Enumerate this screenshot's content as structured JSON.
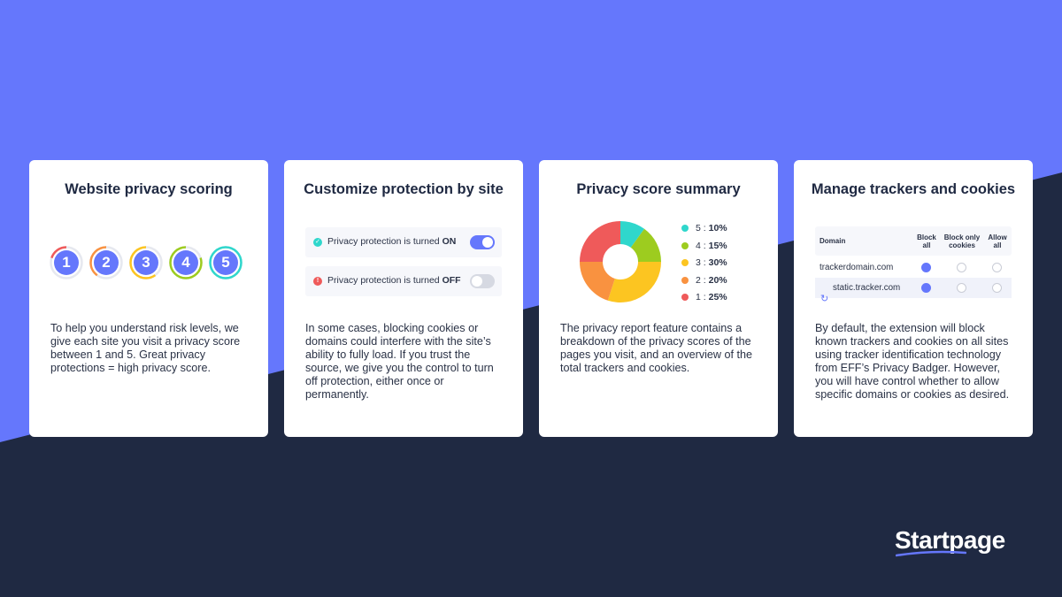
{
  "colors": {
    "background_top": "#6577fc",
    "background_bottom": "#1f2942",
    "accent": "#6577fc",
    "score_1": "#ef5a5a",
    "score_2": "#f99240",
    "score_3": "#fcc521",
    "score_4": "#9dcc1f",
    "score_5": "#2fd7cc"
  },
  "cards": [
    {
      "title": "Website privacy scoring",
      "scores": [
        "1",
        "2",
        "3",
        "4",
        "5"
      ],
      "text": "To help you understand risk levels, we give each site you visit a privacy score between 1 and 5. Great privacy protections = high privacy score."
    },
    {
      "title": "Customize protection by site",
      "toggles": [
        {
          "label": "Privacy protection is turned ",
          "state": "ON",
          "on": true,
          "icon": "check-circle-icon"
        },
        {
          "label": "Privacy protection is turned ",
          "state": "OFF",
          "on": false,
          "icon": "alert-circle-icon"
        }
      ],
      "text": "In some cases, blocking cookies or domains could interfere with the site’s ability to fully load. If you trust the source, we give you the control to turn off protection, either once or permanently."
    },
    {
      "title": "Privacy score summary",
      "legend": [
        {
          "score": "5",
          "sep": " : ",
          "value": "10%"
        },
        {
          "score": "4",
          "sep": " : ",
          "value": "15%"
        },
        {
          "score": "3",
          "sep": " : ",
          "value": "30%"
        },
        {
          "score": "2",
          "sep": " : ",
          "value": "20%"
        },
        {
          "score": "1",
          "sep": " : ",
          "value": "25%"
        }
      ],
      "text": "The privacy report feature contains a breakdown of the privacy scores of the pages you visit, and an overview of the total trackers and cookies."
    },
    {
      "title": "Manage trackers and cookies",
      "table": {
        "headers": [
          "Domain",
          "Block all",
          "Block only cookies",
          "Allow all"
        ],
        "rows": [
          {
            "domain": "trackerdomain.com",
            "selected": 0
          },
          {
            "domain": "static.tracker.com",
            "selected": 0
          }
        ]
      },
      "text": "By default, the extension will block known trackers and cookies on all sites using tracker identification technology from EFF’s Privacy Badger. However, you will have control whether to allow specific domains or cookies as desired."
    }
  ],
  "chart_data": {
    "type": "pie",
    "categories": [
      "5",
      "4",
      "3",
      "2",
      "1"
    ],
    "values": [
      10,
      15,
      30,
      20,
      25
    ],
    "colors": [
      "#2fd7cc",
      "#9dcc1f",
      "#fcc521",
      "#f99240",
      "#ef5a5a"
    ],
    "title": "Privacy score summary"
  },
  "logo": "Startpage"
}
